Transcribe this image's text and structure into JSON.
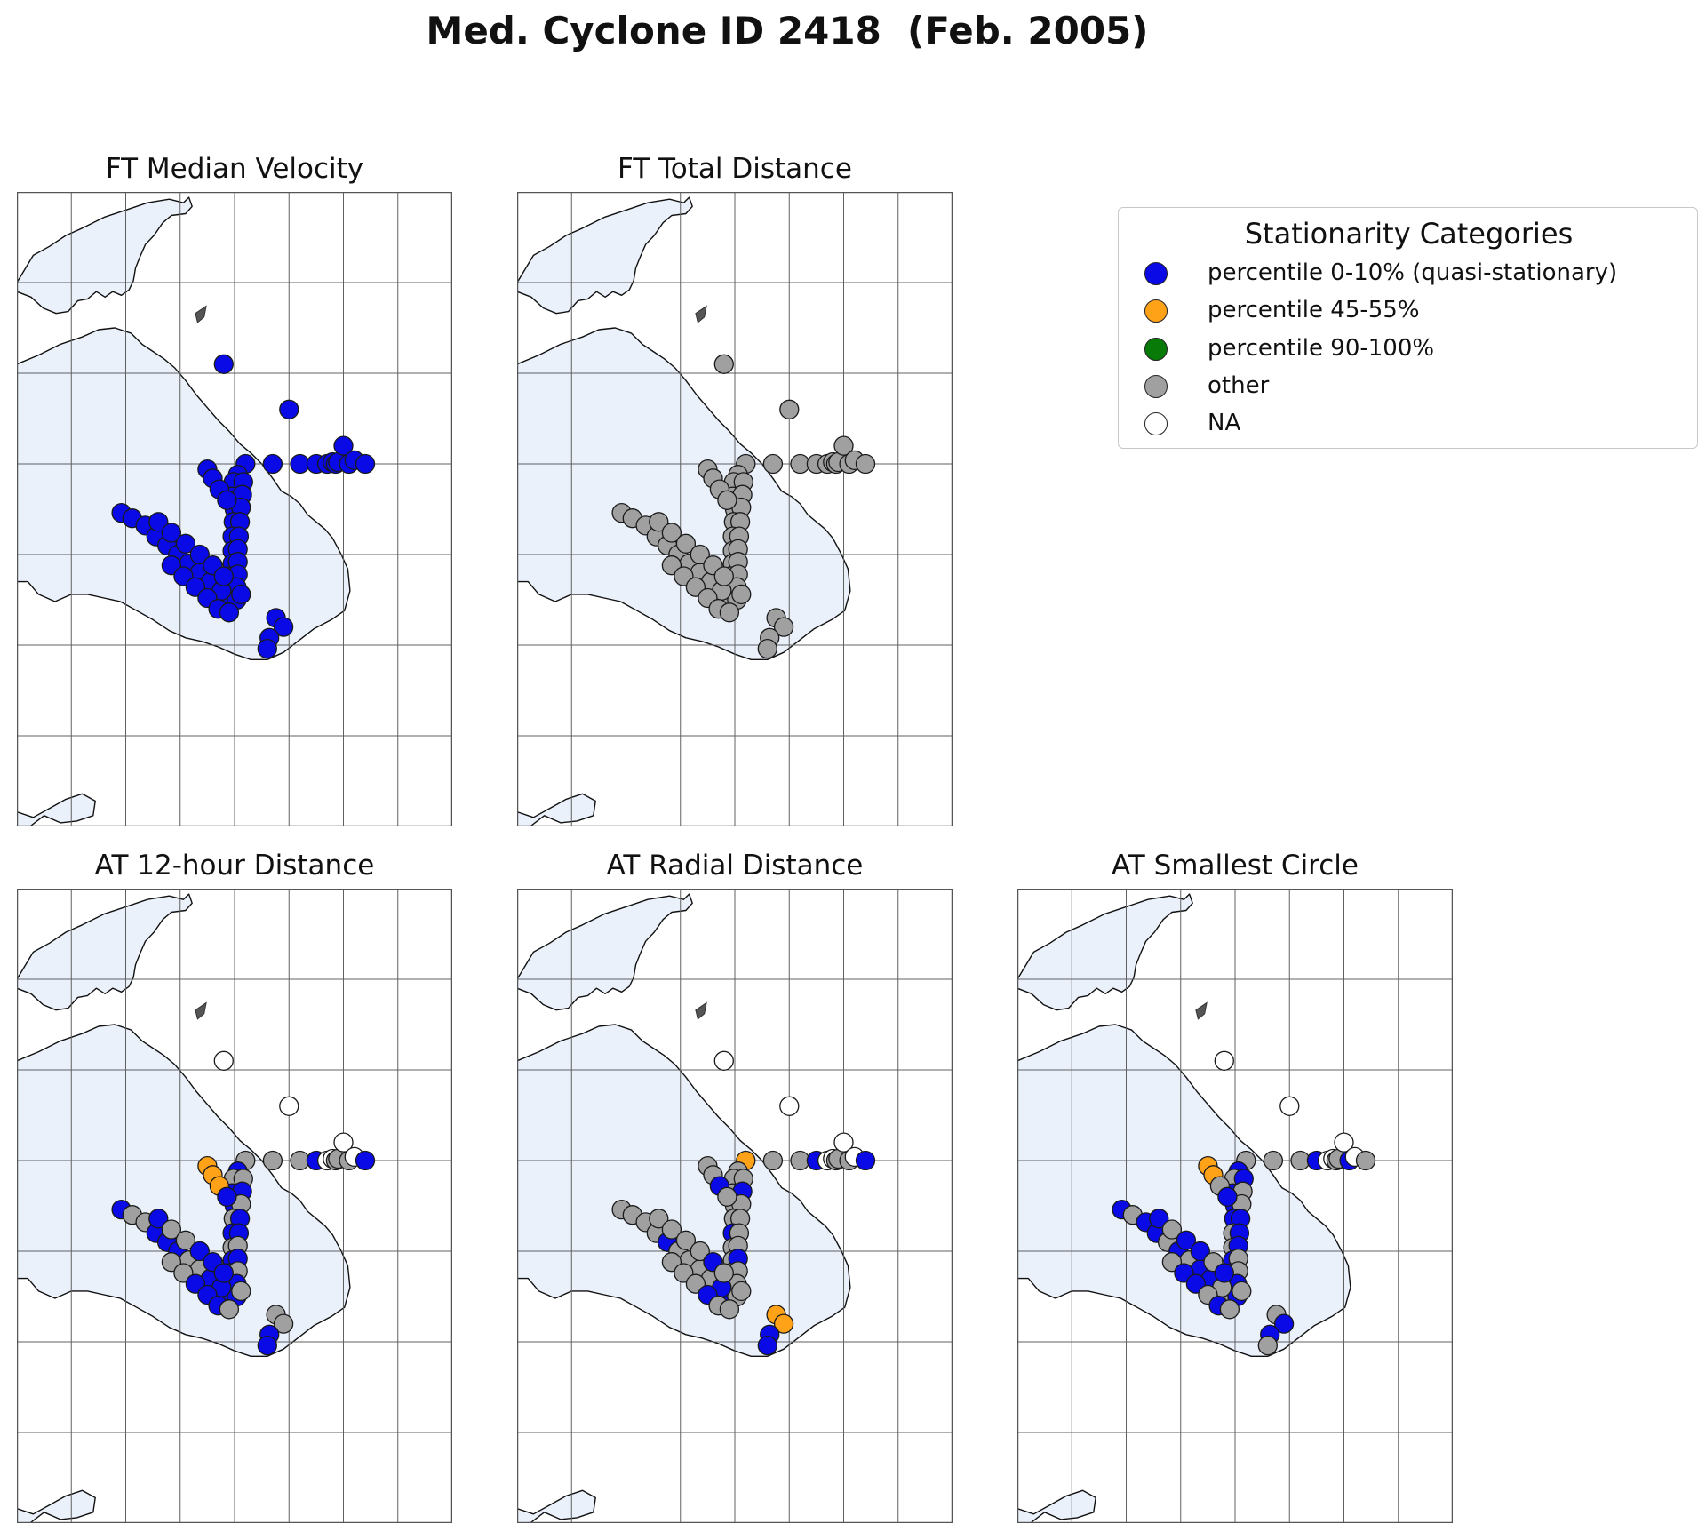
{
  "title": "Med. Cyclone ID 2418  (Feb. 2005)",
  "colors": {
    "category_0_10": "#0a0ae6",
    "category_45_55": "#ffa218",
    "category_90_100": "#087a08",
    "other": "#a0a0a0",
    "na": "#ffffff",
    "sea": "#eaf1fb",
    "grid": "#606060"
  },
  "legend": {
    "title": "Stationarity Categories",
    "placement": "upper-right",
    "items": [
      {
        "key": "q",
        "label": "percentile 0-10% (quasi-stationary)",
        "color": "#0a0ae6"
      },
      {
        "key": "m",
        "label": "percentile 45-55%",
        "color": "#ffa218"
      },
      {
        "key": "h",
        "label": "percentile 90-100%",
        "color": "#087a08"
      },
      {
        "key": "o",
        "label": "other",
        "color": "#a0a0a0"
      },
      {
        "key": "n",
        "label": "NA",
        "color": "#ffffff"
      }
    ]
  },
  "panels": [
    {
      "title": "FT Median Velocity",
      "pattern": [
        "q"
      ],
      "overrides": []
    },
    {
      "title": "FT Total Distance",
      "pattern": [
        "o"
      ],
      "overrides": []
    },
    {
      "title": "AT 12-hour Distance",
      "pattern": [
        "o",
        "o",
        "q",
        "q",
        "q"
      ],
      "overrides": [
        [
          0,
          "n"
        ],
        [
          1,
          "n"
        ],
        [
          2,
          "o"
        ],
        [
          3,
          "o"
        ],
        [
          4,
          "o"
        ],
        [
          5,
          "q"
        ],
        [
          6,
          "n"
        ],
        [
          7,
          "n"
        ],
        [
          8,
          "o"
        ],
        [
          9,
          "o"
        ],
        [
          10,
          "n"
        ],
        [
          12,
          "n"
        ],
        [
          36,
          "m"
        ],
        [
          37,
          "m"
        ],
        [
          38,
          "m"
        ]
      ]
    },
    {
      "title": "AT Radial Distance",
      "pattern": [
        "o",
        "o",
        "o",
        "q",
        "o"
      ],
      "overrides": [
        [
          0,
          "n"
        ],
        [
          1,
          "n"
        ],
        [
          2,
          "m"
        ],
        [
          3,
          "o"
        ],
        [
          4,
          "o"
        ],
        [
          5,
          "q"
        ],
        [
          6,
          "n"
        ],
        [
          7,
          "n"
        ],
        [
          8,
          "o"
        ],
        [
          9,
          "o"
        ],
        [
          10,
          "n"
        ],
        [
          12,
          "n"
        ],
        [
          40,
          "m"
        ],
        [
          41,
          "m"
        ],
        [
          42,
          "q"
        ]
      ]
    },
    {
      "title": "AT Smallest Circle",
      "pattern": [
        "o",
        "q",
        "q",
        "o",
        "q"
      ],
      "overrides": [
        [
          0,
          "n"
        ],
        [
          1,
          "n"
        ],
        [
          2,
          "o"
        ],
        [
          3,
          "o"
        ],
        [
          4,
          "o"
        ],
        [
          5,
          "q"
        ],
        [
          6,
          "n"
        ],
        [
          7,
          "n"
        ],
        [
          8,
          "o"
        ],
        [
          9,
          "o"
        ],
        [
          10,
          "n"
        ],
        [
          12,
          "n"
        ],
        [
          36,
          "m"
        ],
        [
          37,
          "m"
        ]
      ]
    }
  ],
  "track_points": [
    [
      19.0,
      50.5
    ],
    [
      25.0,
      48.0
    ],
    [
      21.0,
      45.0
    ],
    [
      23.5,
      45.0
    ],
    [
      26.0,
      45.0
    ],
    [
      27.5,
      45.0
    ],
    [
      28.5,
      45.0
    ],
    [
      29.0,
      45.1
    ],
    [
      29.3,
      45.0
    ],
    [
      29.5,
      45.1
    ],
    [
      30.0,
      46.0
    ],
    [
      30.5,
      45.0
    ],
    [
      31.0,
      45.2
    ],
    [
      32.0,
      45.0
    ],
    [
      20.3,
      44.4
    ],
    [
      19.9,
      44.0
    ],
    [
      20.8,
      44.0
    ],
    [
      19.8,
      43.2
    ],
    [
      20.7,
      43.3
    ],
    [
      20.0,
      42.5
    ],
    [
      20.6,
      42.6
    ],
    [
      19.9,
      41.8
    ],
    [
      20.5,
      41.8
    ],
    [
      19.8,
      41.0
    ],
    [
      20.4,
      41.0
    ],
    [
      19.8,
      40.2
    ],
    [
      20.3,
      40.3
    ],
    [
      19.8,
      39.5
    ],
    [
      20.3,
      39.6
    ],
    [
      19.6,
      38.8
    ],
    [
      20.3,
      38.9
    ],
    [
      19.5,
      38.1
    ],
    [
      20.2,
      38.2
    ],
    [
      19.6,
      37.4
    ],
    [
      20.2,
      37.5
    ],
    [
      20.6,
      37.8
    ],
    [
      17.5,
      44.7
    ],
    [
      18.0,
      44.2
    ],
    [
      18.6,
      43.6
    ],
    [
      19.3,
      43.0
    ],
    [
      23.8,
      36.5
    ],
    [
      24.5,
      36.0
    ],
    [
      23.2,
      35.4
    ],
    [
      23.0,
      34.8
    ],
    [
      9.6,
      42.3
    ],
    [
      10.6,
      42.0
    ],
    [
      11.8,
      41.6
    ],
    [
      12.8,
      41.0
    ],
    [
      13.8,
      40.5
    ],
    [
      14.8,
      40.0
    ],
    [
      15.8,
      39.5
    ],
    [
      16.8,
      39.0
    ],
    [
      17.8,
      38.5
    ],
    [
      18.8,
      38.0
    ],
    [
      13.0,
      41.8
    ],
    [
      14.2,
      41.2
    ],
    [
      15.5,
      40.6
    ],
    [
      16.8,
      40.0
    ],
    [
      18.0,
      39.4
    ],
    [
      19.0,
      38.8
    ],
    [
      14.2,
      39.4
    ],
    [
      15.3,
      38.8
    ],
    [
      16.4,
      38.2
    ],
    [
      17.5,
      37.6
    ],
    [
      18.5,
      37.0
    ],
    [
      19.5,
      36.8
    ]
  ]
}
